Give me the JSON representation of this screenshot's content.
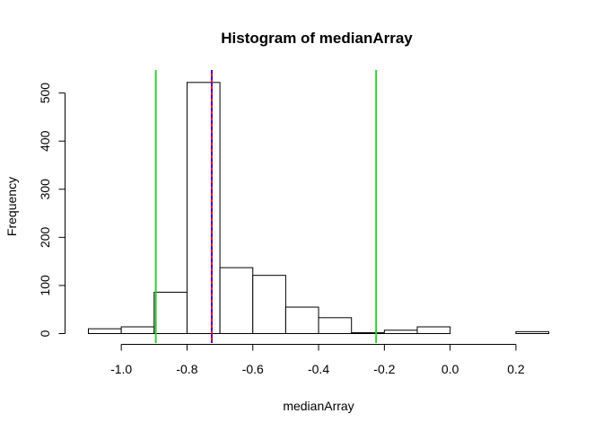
{
  "chart_data": {
    "type": "bar",
    "title": "Histogram of medianArray",
    "xlabel": "medianArray",
    "ylabel": "Frequency",
    "xlim": [
      -1.1,
      0.3
    ],
    "ylim": [
      0,
      520
    ],
    "x_ticks": [
      -1.0,
      -0.8,
      -0.6,
      -0.4,
      -0.2,
      0.0,
      0.2
    ],
    "x_tick_labels": [
      "-1.0",
      "-0.8",
      "-0.6",
      "-0.4",
      "-0.2",
      "0.0",
      "0.2"
    ],
    "y_ticks": [
      0,
      100,
      200,
      300,
      400,
      500
    ],
    "y_tick_labels": [
      "0",
      "100",
      "200",
      "300",
      "400",
      "500"
    ],
    "bins": [
      {
        "x0": -1.1,
        "x1": -1.0,
        "count": 10
      },
      {
        "x0": -1.0,
        "x1": -0.9,
        "count": 14
      },
      {
        "x0": -0.9,
        "x1": -0.8,
        "count": 86
      },
      {
        "x0": -0.8,
        "x1": -0.7,
        "count": 522
      },
      {
        "x0": -0.7,
        "x1": -0.6,
        "count": 137
      },
      {
        "x0": -0.6,
        "x1": -0.5,
        "count": 121
      },
      {
        "x0": -0.5,
        "x1": -0.4,
        "count": 55
      },
      {
        "x0": -0.4,
        "x1": -0.3,
        "count": 33
      },
      {
        "x0": -0.3,
        "x1": -0.2,
        "count": 2
      },
      {
        "x0": -0.2,
        "x1": -0.1,
        "count": 7
      },
      {
        "x0": -0.1,
        "x1": 0.0,
        "count": 14
      },
      {
        "x0": 0.0,
        "x1": 0.1,
        "count": 0
      },
      {
        "x0": 0.1,
        "x1": 0.2,
        "count": 0
      },
      {
        "x0": 0.2,
        "x1": 0.3,
        "count": 4
      }
    ],
    "vertical_lines": [
      {
        "x": -0.895,
        "color": "#33cc33",
        "style": "solid"
      },
      {
        "x": -0.225,
        "color": "#33cc33",
        "style": "solid"
      },
      {
        "x": -0.725,
        "color": "#ff0000",
        "style": "solid"
      },
      {
        "x": -0.725,
        "color": "#0000ff",
        "style": "dashed"
      }
    ]
  }
}
